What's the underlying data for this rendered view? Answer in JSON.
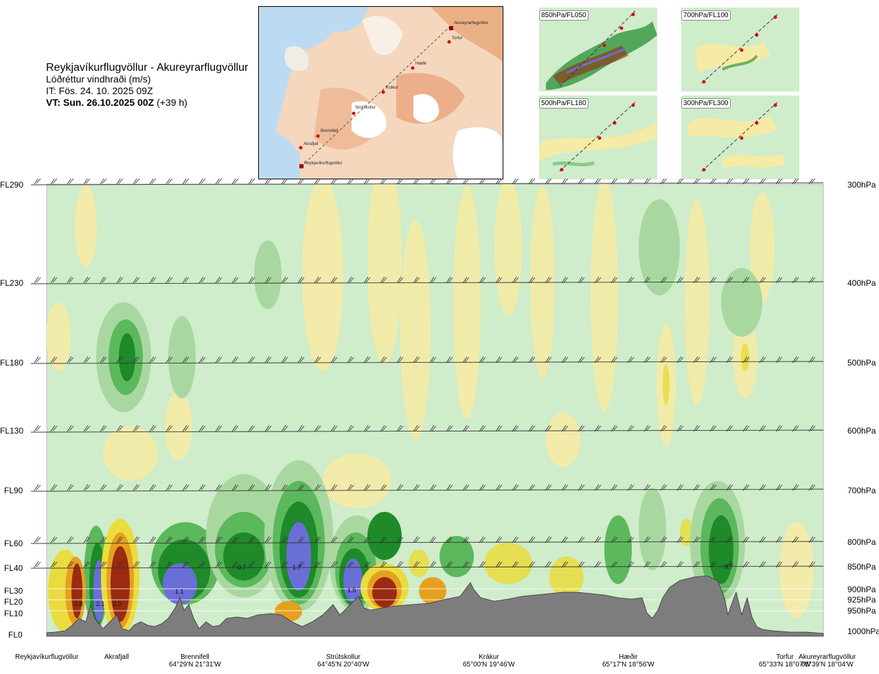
{
  "title": {
    "route": "Reykjavíkurflugvöllur - Akureyrarflugvöllur",
    "variable": "Lóðréttur vindhraði (m/s)",
    "issue_time": "IT: Fös. 24. 10. 2025 09Z",
    "valid_time_bold": "VT: Sun. 26.10.2025 00Z",
    "valid_time_offset": " (+39 h)"
  },
  "route_map": {
    "labels": [
      "Akureyrarflugvöllur",
      "Torfur",
      "Hæðir",
      "Krákur",
      "Strútskollur",
      "Brennifell",
      "Akrafjall",
      "Reykjavíkurflugvöllur"
    ]
  },
  "thumbnails": [
    {
      "label": "850hPa/FL050"
    },
    {
      "label": "700hPa/FL100"
    },
    {
      "label": "500hPa/FL180"
    },
    {
      "label": "300hPa/FL300"
    }
  ],
  "colors": {
    "frame_bg": "#cfeccb",
    "terrain": "#7d7d7d",
    "green_light": "#a8d8a0",
    "green_mid": "#5cb85c",
    "green_dark": "#1e8a2a",
    "blue": "#6a6fd8",
    "yellow_light": "#f5eba6",
    "yellow": "#eadc3e",
    "orange": "#e6a020",
    "brown": "#9a2a10"
  },
  "chart_data": {
    "type": "heatmap",
    "title": "Lóðréttur vindhraði (m/s)",
    "y_axis_left": [
      "FL290",
      "FL230",
      "FL180",
      "FL130",
      "FL90",
      "FL60",
      "FL40",
      "FL30",
      "FL20",
      "FL10",
      "FL0"
    ],
    "y_axis_right": [
      "300hPa",
      "400hPa",
      "500hPa",
      "600hPa",
      "700hPa",
      "800hPa",
      "850hPa",
      "900hPa",
      "925hPa",
      "950hPa",
      "1000hPa"
    ],
    "x_points": [
      {
        "name": "Reykjavíkurflugvöllur",
        "coord": ""
      },
      {
        "name": "Akrafjall",
        "coord": ""
      },
      {
        "name": "Brennifell",
        "coord": "64°29'N 21°31'W"
      },
      {
        "name": "Strútskollur",
        "coord": "64°45'N 20°40'W"
      },
      {
        "name": "Krákur",
        "coord": "65°00'N 19°46'W"
      },
      {
        "name": "Hæðir",
        "coord": "65°17'N 18°56'W"
      },
      {
        "name": "Torfur",
        "coord": "65°33'N 18°07'W"
      },
      {
        "name": "Akureyrarflugvöllur",
        "coord": "65°39'N 18°04'W"
      }
    ],
    "annotations": [
      "0.8",
      "2.1",
      "2.0",
      "1.1",
      "0.7",
      "1.7",
      "1.5",
      "0.7"
    ]
  }
}
